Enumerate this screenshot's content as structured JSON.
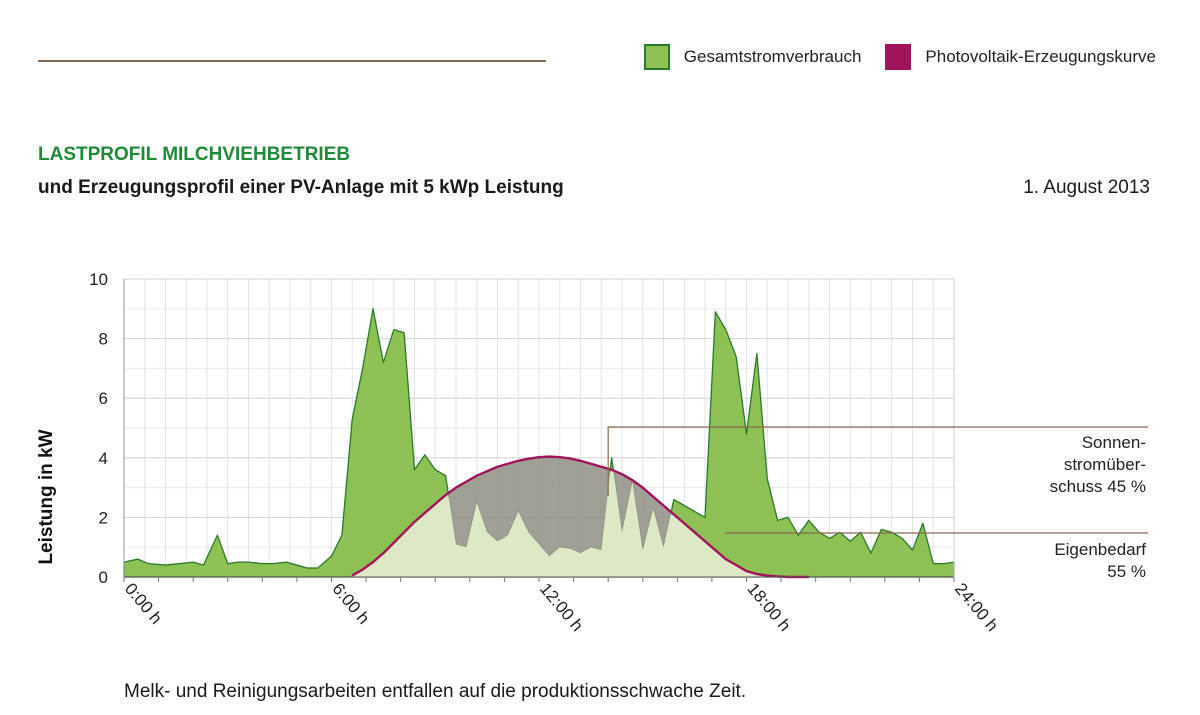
{
  "header": {
    "title": "LASTPROFIL MILCHVIEHBETRIEB",
    "subtitle": "und Erzeugungsprofil einer PV-Anlage mit 5 kWp Leistung",
    "date": "1. August 2013"
  },
  "legend": [
    {
      "label": "Gesamtstromverbrauch",
      "color": "#8dc153",
      "border": "#2a7a2a"
    },
    {
      "label": "Photovoltaik-Erzeugungskurve",
      "color": "#a1135a",
      "border": "#a1135a"
    }
  ],
  "caption": "Melk- und Reinigungsarbeiten entfallen auf die produktionsschwache Zeit.",
  "chart_data": {
    "type": "area",
    "title": "LASTPROFIL MILCHVIEHBETRIEB",
    "ylabel": "Leistung in kW",
    "xlabel": "",
    "xlim": [
      0,
      24
    ],
    "ylim": [
      0,
      10
    ],
    "yticks": [
      "0",
      "2",
      "4",
      "6",
      "8",
      "10"
    ],
    "xticks": [
      {
        "x": 0,
        "label": "0:00 h"
      },
      {
        "x": 6,
        "label": "6:00 h"
      },
      {
        "x": 12,
        "label": "12:00 h"
      },
      {
        "x": 18,
        "label": "18:00 h"
      },
      {
        "x": 24,
        "label": "24:00 h"
      }
    ],
    "colors": {
      "consumption": "#8dc153",
      "consumption_line": "#2a7a2a",
      "pv": "#a1135a",
      "surplus": "#8f8f85",
      "self_use": "#dde8c6"
    },
    "series": [
      {
        "name": "Gesamtstromverbrauch",
        "x": [
          0,
          0.4,
          0.7,
          1.2,
          1.6,
          2,
          2.3,
          2.7,
          3,
          3.3,
          3.6,
          4,
          4.3,
          4.7,
          5,
          5.3,
          5.6,
          6,
          6.3,
          6.6,
          6.9,
          7.2,
          7.5,
          7.8,
          8.1,
          8.4,
          8.7,
          9,
          9.3,
          9.6,
          9.9,
          10.2,
          10.5,
          10.8,
          11.1,
          11.4,
          11.7,
          12,
          12.3,
          12.6,
          12.9,
          13.2,
          13.5,
          13.8,
          14.1,
          14.4,
          14.7,
          15,
          15.3,
          15.6,
          15.9,
          16.2,
          16.5,
          16.8,
          17.1,
          17.4,
          17.7,
          18,
          18.3,
          18.6,
          18.9,
          19.2,
          19.5,
          19.8,
          20.1,
          20.4,
          20.7,
          21,
          21.3,
          21.6,
          21.9,
          22.2,
          22.5,
          22.8,
          23.1,
          23.4,
          23.7,
          24
        ],
        "values": [
          0.5,
          0.6,
          0.45,
          0.4,
          0.45,
          0.5,
          0.4,
          1.4,
          0.45,
          0.5,
          0.5,
          0.45,
          0.45,
          0.5,
          0.4,
          0.3,
          0.3,
          0.7,
          1.4,
          5.3,
          7.0,
          9.0,
          7.2,
          8.3,
          8.2,
          3.6,
          4.1,
          3.6,
          3.4,
          1.1,
          1.0,
          2.5,
          1.5,
          1.2,
          1.4,
          2.2,
          1.5,
          1.1,
          0.7,
          1.0,
          0.95,
          0.8,
          1.0,
          0.9,
          4.0,
          1.5,
          3.2,
          0.9,
          2.3,
          1.0,
          2.6,
          2.4,
          2.2,
          2.0,
          8.9,
          8.3,
          7.4,
          4.8,
          7.5,
          3.3,
          1.9,
          2.0,
          1.4,
          1.9,
          1.5,
          1.3,
          1.5,
          1.2,
          1.5,
          0.8,
          1.6,
          1.5,
          1.3,
          0.9,
          1.8,
          0.45,
          0.45,
          0.5
        ]
      },
      {
        "name": "Photovoltaik-Erzeugungskurve",
        "x": [
          6.6,
          6.9,
          7.2,
          7.5,
          7.8,
          8.1,
          8.4,
          8.7,
          9,
          9.3,
          9.6,
          9.9,
          10.2,
          10.5,
          10.8,
          11.1,
          11.4,
          11.7,
          12,
          12.3,
          12.6,
          12.9,
          13.2,
          13.5,
          13.8,
          14.1,
          14.4,
          14.7,
          15,
          15.3,
          15.6,
          15.9,
          16.2,
          16.5,
          16.8,
          17.1,
          17.4,
          17.7,
          18,
          18.3,
          18.6,
          18.9,
          19.2,
          19.5,
          19.8
        ],
        "values": [
          0.05,
          0.25,
          0.5,
          0.8,
          1.15,
          1.5,
          1.85,
          2.15,
          2.45,
          2.75,
          3.0,
          3.2,
          3.4,
          3.55,
          3.7,
          3.8,
          3.9,
          3.97,
          4.02,
          4.04,
          4.02,
          3.98,
          3.9,
          3.8,
          3.7,
          3.6,
          3.45,
          3.25,
          3.0,
          2.7,
          2.4,
          2.1,
          1.8,
          1.5,
          1.2,
          0.9,
          0.6,
          0.4,
          0.2,
          0.1,
          0.05,
          0.02,
          0,
          0,
          0
        ]
      }
    ],
    "annotations": [
      {
        "lines": [
          "Sonnen-",
          "stromüber-",
          "schuss 45 %"
        ],
        "x": 14,
        "y": 5.0
      },
      {
        "lines": [
          "Eigenbedarf",
          "55 %"
        ],
        "x": 17.5,
        "y": 1.5
      }
    ]
  }
}
